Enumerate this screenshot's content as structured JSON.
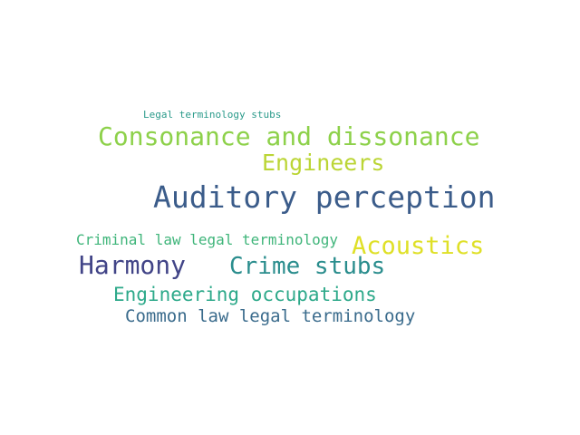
{
  "words": [
    {
      "text": "Legal terminology stubs",
      "color": "#2a9a8a"
    },
    {
      "text": "Consonance and dissonance",
      "color": "#8dd14a"
    },
    {
      "text": "Engineers",
      "color": "#bbd535"
    },
    {
      "text": "Auditory perception",
      "color": "#3b5c8a"
    },
    {
      "text": "Criminal law legal terminology",
      "color": "#3fb57a"
    },
    {
      "text": "Acoustics",
      "color": "#dfe028"
    },
    {
      "text": "Harmony",
      "color": "#414487"
    },
    {
      "text": "Crime stubs",
      "color": "#2a8d8d"
    },
    {
      "text": "Engineering occupations",
      "color": "#2da98a"
    },
    {
      "text": "Common law legal terminology",
      "color": "#3a6b8c"
    }
  ]
}
